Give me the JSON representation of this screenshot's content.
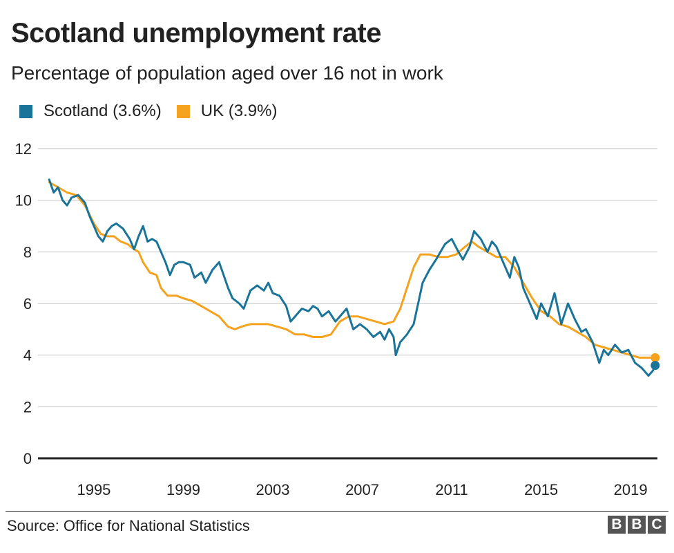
{
  "header": {
    "title": "Scotland unemployment rate",
    "subtitle": "Percentage of population aged over 16 not in work"
  },
  "legend": [
    {
      "label": "Scotland (3.6%)",
      "color": "#1a7499"
    },
    {
      "label": "UK (3.9%)",
      "color": "#f5a21f"
    }
  ],
  "footer": {
    "source": "Source: Office for National Statistics",
    "logo_letters": [
      "B",
      "B",
      "C"
    ]
  },
  "chart_data": {
    "type": "line",
    "title": "Scotland unemployment rate",
    "subtitle": "Percentage of population aged over 16 not in work",
    "ylim": [
      0,
      12
    ],
    "xlim": [
      1992.5,
      2020.2
    ],
    "y_ticks": [
      0,
      2,
      4,
      6,
      8,
      10,
      12
    ],
    "y_tick_labels": [
      "0",
      "2",
      "4",
      "6",
      "8",
      "10",
      "12"
    ],
    "x_ticks": [
      1995,
      1999,
      2003,
      2007,
      2011,
      2015,
      2019
    ],
    "x_tick_labels": [
      "1995",
      "1999",
      "2003",
      "2007",
      "2011",
      "2015",
      "2019"
    ],
    "grid": true,
    "legend_position": "top-left",
    "series": [
      {
        "name": "Scotland (3.6%)",
        "color": "#1a7499",
        "end_marker": true,
        "points": [
          [
            1993.0,
            10.8
          ],
          [
            1993.2,
            10.3
          ],
          [
            1993.4,
            10.5
          ],
          [
            1993.6,
            10.0
          ],
          [
            1993.8,
            9.8
          ],
          [
            1994.0,
            10.1
          ],
          [
            1994.3,
            10.2
          ],
          [
            1994.6,
            9.9
          ],
          [
            1994.8,
            9.4
          ],
          [
            1995.0,
            9.0
          ],
          [
            1995.2,
            8.6
          ],
          [
            1995.4,
            8.4
          ],
          [
            1995.6,
            8.8
          ],
          [
            1995.8,
            9.0
          ],
          [
            1996.0,
            9.1
          ],
          [
            1996.3,
            8.9
          ],
          [
            1996.6,
            8.5
          ],
          [
            1996.8,
            8.1
          ],
          [
            1997.0,
            8.6
          ],
          [
            1997.2,
            9.0
          ],
          [
            1997.4,
            8.4
          ],
          [
            1997.6,
            8.5
          ],
          [
            1997.8,
            8.4
          ],
          [
            1998.0,
            8.0
          ],
          [
            1998.2,
            7.6
          ],
          [
            1998.4,
            7.1
          ],
          [
            1998.6,
            7.5
          ],
          [
            1998.8,
            7.6
          ],
          [
            1999.0,
            7.6
          ],
          [
            1999.3,
            7.5
          ],
          [
            1999.5,
            7.0
          ],
          [
            1999.8,
            7.2
          ],
          [
            2000.0,
            6.8
          ],
          [
            2000.3,
            7.3
          ],
          [
            2000.6,
            7.6
          ],
          [
            2000.8,
            7.1
          ],
          [
            2001.0,
            6.6
          ],
          [
            2001.2,
            6.2
          ],
          [
            2001.5,
            6.0
          ],
          [
            2001.7,
            5.8
          ],
          [
            2002.0,
            6.5
          ],
          [
            2002.3,
            6.7
          ],
          [
            2002.6,
            6.5
          ],
          [
            2002.8,
            6.8
          ],
          [
            2003.0,
            6.4
          ],
          [
            2003.3,
            6.3
          ],
          [
            2003.6,
            5.9
          ],
          [
            2003.8,
            5.3
          ],
          [
            2004.0,
            5.5
          ],
          [
            2004.3,
            5.8
          ],
          [
            2004.6,
            5.7
          ],
          [
            2004.8,
            5.9
          ],
          [
            2005.0,
            5.8
          ],
          [
            2005.2,
            5.5
          ],
          [
            2005.5,
            5.7
          ],
          [
            2005.8,
            5.3
          ],
          [
            2006.0,
            5.5
          ],
          [
            2006.3,
            5.8
          ],
          [
            2006.6,
            5.0
          ],
          [
            2006.9,
            5.2
          ],
          [
            2007.2,
            5.0
          ],
          [
            2007.5,
            4.7
          ],
          [
            2007.8,
            4.9
          ],
          [
            2008.0,
            4.6
          ],
          [
            2008.2,
            5.0
          ],
          [
            2008.4,
            4.7
          ],
          [
            2008.5,
            4.0
          ],
          [
            2008.7,
            4.5
          ],
          [
            2009.0,
            4.8
          ],
          [
            2009.3,
            5.2
          ],
          [
            2009.5,
            6.0
          ],
          [
            2009.7,
            6.8
          ],
          [
            2010.0,
            7.3
          ],
          [
            2010.3,
            7.7
          ],
          [
            2010.5,
            8.0
          ],
          [
            2010.7,
            8.3
          ],
          [
            2011.0,
            8.5
          ],
          [
            2011.3,
            8.0
          ],
          [
            2011.5,
            7.7
          ],
          [
            2011.8,
            8.2
          ],
          [
            2012.0,
            8.8
          ],
          [
            2012.3,
            8.5
          ],
          [
            2012.6,
            8.0
          ],
          [
            2012.8,
            8.4
          ],
          [
            2013.0,
            8.2
          ],
          [
            2013.3,
            7.6
          ],
          [
            2013.6,
            7.0
          ],
          [
            2013.8,
            7.8
          ],
          [
            2014.0,
            7.4
          ],
          [
            2014.2,
            6.6
          ],
          [
            2014.5,
            6.0
          ],
          [
            2014.8,
            5.4
          ],
          [
            2015.0,
            6.0
          ],
          [
            2015.3,
            5.5
          ],
          [
            2015.6,
            6.4
          ],
          [
            2015.9,
            5.2
          ],
          [
            2016.2,
            6.0
          ],
          [
            2016.5,
            5.4
          ],
          [
            2016.8,
            4.9
          ],
          [
            2017.0,
            5.0
          ],
          [
            2017.3,
            4.5
          ],
          [
            2017.6,
            3.7
          ],
          [
            2017.8,
            4.2
          ],
          [
            2018.0,
            4.0
          ],
          [
            2018.3,
            4.4
          ],
          [
            2018.6,
            4.1
          ],
          [
            2018.9,
            4.2
          ],
          [
            2019.2,
            3.7
          ],
          [
            2019.5,
            3.5
          ],
          [
            2019.8,
            3.2
          ],
          [
            2020.0,
            3.4
          ],
          [
            2020.1,
            3.6
          ]
        ]
      },
      {
        "name": "UK (3.9%)",
        "color": "#f5a21f",
        "end_marker": true,
        "points": [
          [
            1993.0,
            10.7
          ],
          [
            1993.4,
            10.5
          ],
          [
            1993.8,
            10.3
          ],
          [
            1994.2,
            10.2
          ],
          [
            1994.6,
            9.8
          ],
          [
            1995.0,
            9.1
          ],
          [
            1995.3,
            8.7
          ],
          [
            1995.6,
            8.6
          ],
          [
            1995.9,
            8.6
          ],
          [
            1996.2,
            8.4
          ],
          [
            1996.5,
            8.3
          ],
          [
            1996.8,
            8.1
          ],
          [
            1997.0,
            8.0
          ],
          [
            1997.2,
            7.6
          ],
          [
            1997.5,
            7.2
          ],
          [
            1997.8,
            7.1
          ],
          [
            1998.0,
            6.6
          ],
          [
            1998.3,
            6.3
          ],
          [
            1998.7,
            6.3
          ],
          [
            1999.0,
            6.2
          ],
          [
            1999.4,
            6.1
          ],
          [
            1999.8,
            5.9
          ],
          [
            2000.2,
            5.7
          ],
          [
            2000.6,
            5.5
          ],
          [
            2001.0,
            5.1
          ],
          [
            2001.3,
            5.0
          ],
          [
            2001.6,
            5.1
          ],
          [
            2002.0,
            5.2
          ],
          [
            2002.4,
            5.2
          ],
          [
            2002.8,
            5.2
          ],
          [
            2003.2,
            5.1
          ],
          [
            2003.6,
            5.0
          ],
          [
            2004.0,
            4.8
          ],
          [
            2004.4,
            4.8
          ],
          [
            2004.8,
            4.7
          ],
          [
            2005.2,
            4.7
          ],
          [
            2005.6,
            4.8
          ],
          [
            2006.0,
            5.3
          ],
          [
            2006.4,
            5.5
          ],
          [
            2006.8,
            5.5
          ],
          [
            2007.2,
            5.4
          ],
          [
            2007.6,
            5.3
          ],
          [
            2008.0,
            5.2
          ],
          [
            2008.4,
            5.3
          ],
          [
            2008.7,
            5.8
          ],
          [
            2009.0,
            6.6
          ],
          [
            2009.3,
            7.4
          ],
          [
            2009.6,
            7.9
          ],
          [
            2010.0,
            7.9
          ],
          [
            2010.4,
            7.8
          ],
          [
            2010.8,
            7.8
          ],
          [
            2011.2,
            7.9
          ],
          [
            2011.6,
            8.2
          ],
          [
            2011.9,
            8.4
          ],
          [
            2012.2,
            8.2
          ],
          [
            2012.6,
            8.0
          ],
          [
            2013.0,
            7.8
          ],
          [
            2013.4,
            7.8
          ],
          [
            2013.8,
            7.4
          ],
          [
            2014.2,
            6.8
          ],
          [
            2014.6,
            6.2
          ],
          [
            2015.0,
            5.7
          ],
          [
            2015.4,
            5.5
          ],
          [
            2015.8,
            5.2
          ],
          [
            2016.2,
            5.1
          ],
          [
            2016.6,
            4.9
          ],
          [
            2017.0,
            4.7
          ],
          [
            2017.4,
            4.4
          ],
          [
            2017.8,
            4.3
          ],
          [
            2018.2,
            4.2
          ],
          [
            2018.6,
            4.1
          ],
          [
            2019.0,
            4.0
          ],
          [
            2019.4,
            3.9
          ],
          [
            2019.8,
            3.9
          ],
          [
            2020.1,
            3.9
          ]
        ]
      }
    ]
  }
}
